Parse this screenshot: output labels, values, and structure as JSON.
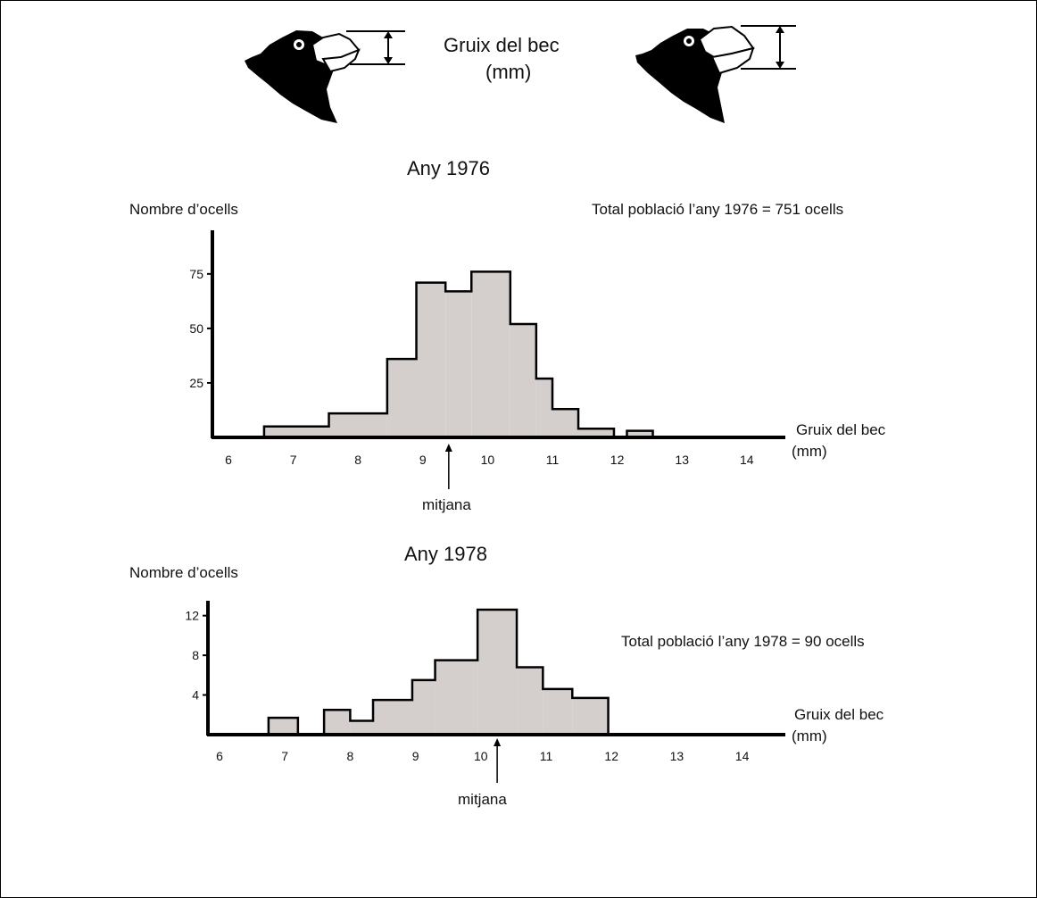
{
  "header": {
    "beak_label_line1": "Gruix del bec",
    "beak_label_line2": "(mm)",
    "left_icon": "finch-head-thin-beak-icon",
    "right_icon": "finch-head-thick-beak-icon"
  },
  "colors": {
    "bar_fill": "#d4cfcc",
    "stroke": "#000000"
  },
  "chart_data": [
    {
      "type": "bar",
      "title": "Any 1976",
      "ylabel": "Nombre d’ocells",
      "xlabel_line1": "Gruix del bec",
      "xlabel_line2": "(mm)",
      "note": "Total població l’any 1976 = 751 ocells",
      "mean_label": "mitjana",
      "mean_value": 9.4,
      "xlim": [
        5.8,
        14.8
      ],
      "ylim": [
        0,
        95
      ],
      "xticks": [
        "6",
        "7",
        "8",
        "9",
        "10",
        "11",
        "12",
        "13",
        "14"
      ],
      "yticks": [
        "25",
        "50",
        "75"
      ],
      "bins": [
        {
          "x0": 6.55,
          "x1": 7.55,
          "value": 5
        },
        {
          "x0": 7.55,
          "x1": 8.45,
          "value": 11
        },
        {
          "x0": 8.45,
          "x1": 8.9,
          "value": 36
        },
        {
          "x0": 8.9,
          "x1": 9.35,
          "value": 71
        },
        {
          "x0": 9.35,
          "x1": 9.75,
          "value": 67
        },
        {
          "x0": 9.75,
          "x1": 10.35,
          "value": 76
        },
        {
          "x0": 10.35,
          "x1": 10.75,
          "value": 52
        },
        {
          "x0": 10.75,
          "x1": 11.0,
          "value": 27
        },
        {
          "x0": 11.0,
          "x1": 11.4,
          "value": 13
        },
        {
          "x0": 11.4,
          "x1": 11.95,
          "value": 4
        },
        {
          "x0": 11.95,
          "x1": 12.15,
          "value": 0
        },
        {
          "x0": 12.15,
          "x1": 12.55,
          "value": 3
        }
      ]
    },
    {
      "type": "bar",
      "title": "Any 1978",
      "ylabel": "Nombre d’ocells",
      "xlabel_line1": "Gruix del bec",
      "xlabel_line2": "(mm)",
      "note": "Total població l’any 1978 = 90 ocells",
      "mean_label": "mitjana",
      "mean_value": 10.25,
      "xlim": [
        5.8,
        14.8
      ],
      "ylim": [
        0,
        13.5
      ],
      "xticks": [
        "6",
        "7",
        "8",
        "9",
        "10",
        "11",
        "12",
        "13",
        "14"
      ],
      "yticks": [
        "4",
        "8",
        "12"
      ],
      "bins": [
        {
          "x0": 6.75,
          "x1": 7.2,
          "value": 1.7
        },
        {
          "x0": 7.2,
          "x1": 7.6,
          "value": 0
        },
        {
          "x0": 7.6,
          "x1": 8.0,
          "value": 2.5
        },
        {
          "x0": 8.0,
          "x1": 8.35,
          "value": 1.4
        },
        {
          "x0": 8.35,
          "x1": 8.95,
          "value": 3.5
        },
        {
          "x0": 8.95,
          "x1": 9.3,
          "value": 5.5
        },
        {
          "x0": 9.3,
          "x1": 9.95,
          "value": 7.5
        },
        {
          "x0": 9.95,
          "x1": 10.55,
          "value": 12.6
        },
        {
          "x0": 10.55,
          "x1": 10.95,
          "value": 6.8
        },
        {
          "x0": 10.95,
          "x1": 11.4,
          "value": 4.6
        },
        {
          "x0": 11.4,
          "x1": 11.95,
          "value": 3.7
        }
      ]
    }
  ]
}
